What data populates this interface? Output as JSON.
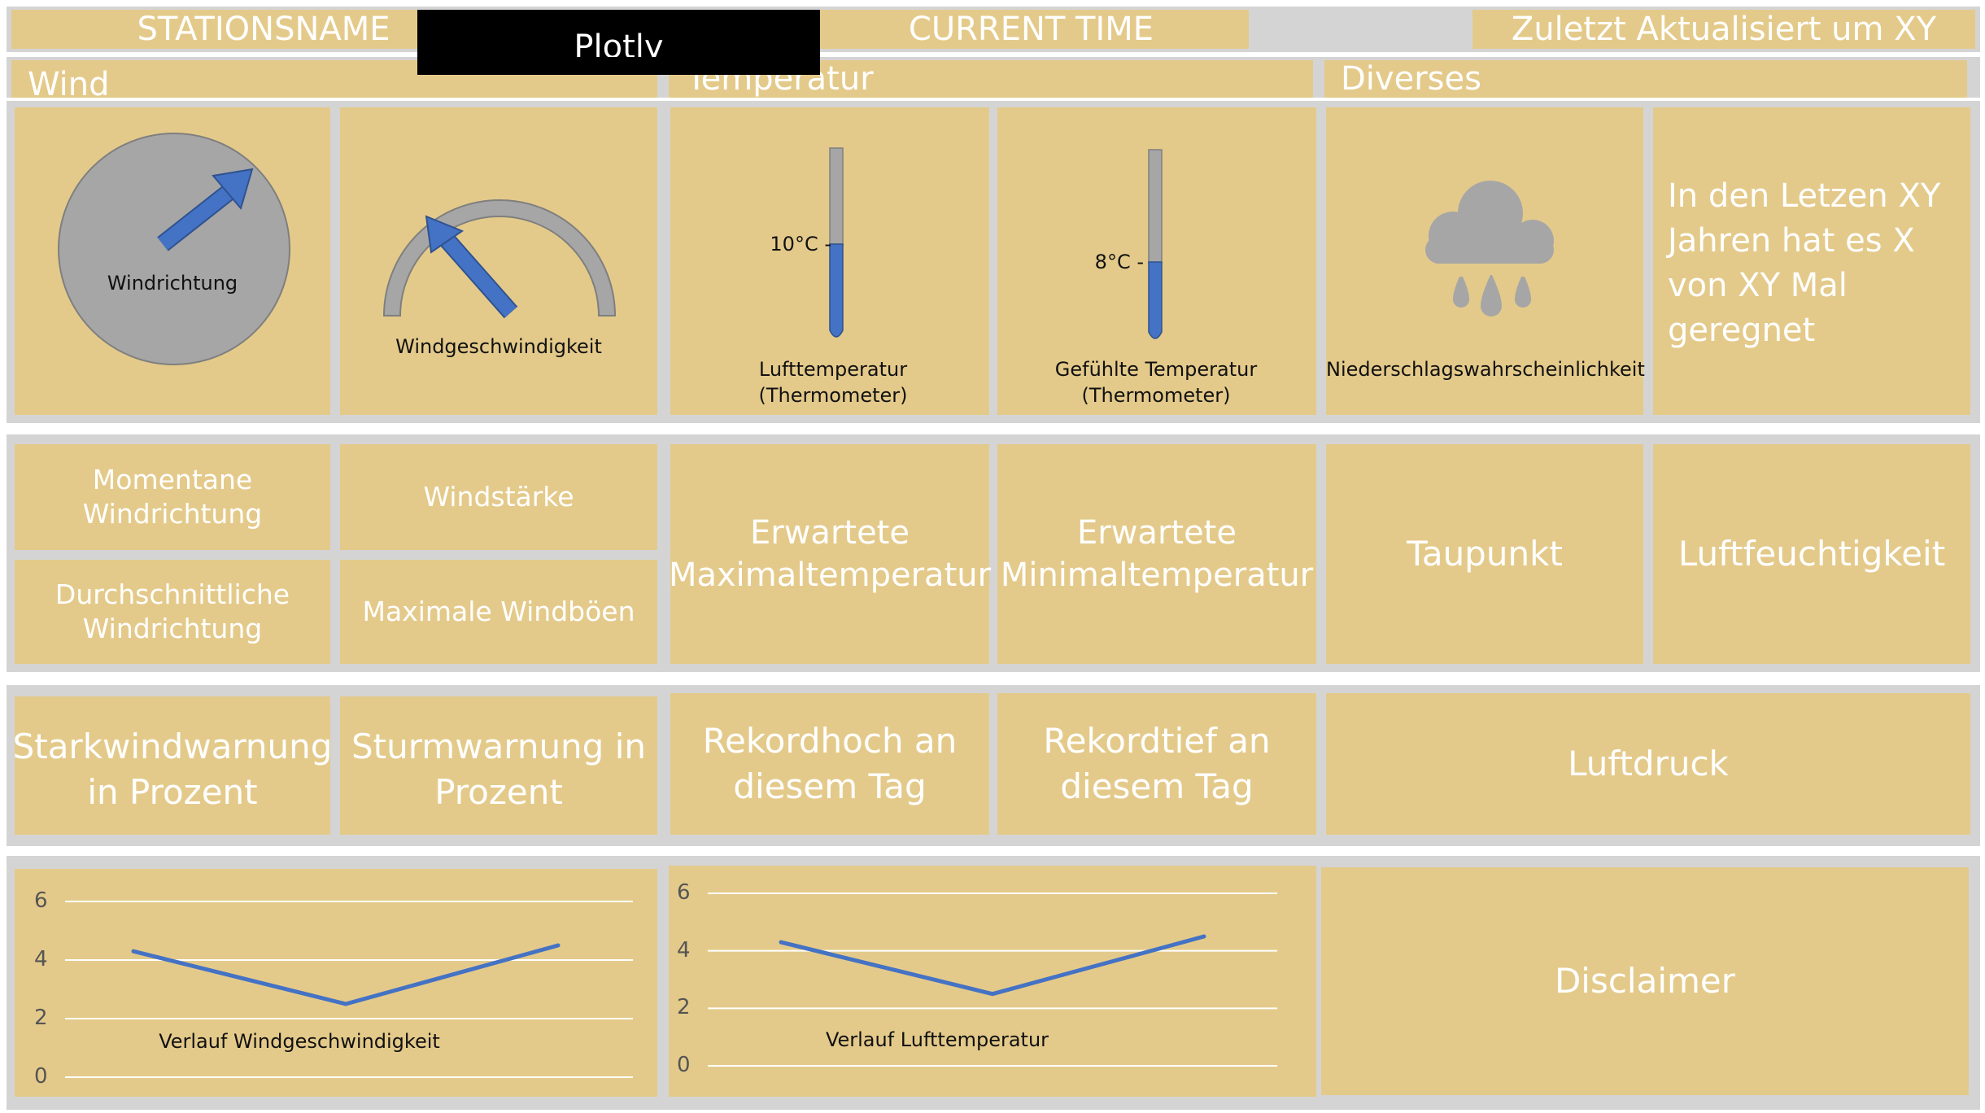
{
  "header": {
    "station_name": "STATIONSNAME",
    "plotly_badge": "Plotly",
    "current_time": "CURRENT TIME",
    "last_updated": "Zuletzt Aktualisiert um XY"
  },
  "sections": {
    "wind": "Wind",
    "temperatur": "Temperatur",
    "diverses": "Diverses"
  },
  "widgets": {
    "wind_direction": "Windrichtung",
    "wind_speed": "Windgeschwindigkeit",
    "air_temp_value": "10°C -",
    "air_temp_label_1": "Lufttemperatur",
    "air_temp_label_2": "(Thermometer)",
    "felt_temp_value": "8°C -",
    "felt_temp_label_1": "Gefühlte Temperatur",
    "felt_temp_label_2": "(Thermometer)",
    "precip_label": "Niederschlagswahrscheinlichkeit",
    "rain_history_1": "In den Letzen XY",
    "rain_history_2": "Jahren hat es X",
    "rain_history_3": "von XY Mal",
    "rain_history_4": "geregnet"
  },
  "row2": {
    "current_wind_dir_1": "Momentane",
    "current_wind_dir_2": "Windrichtung",
    "wind_force": "Windstärke",
    "avg_wind_dir_1": "Durchschnittliche",
    "avg_wind_dir_2": "Windrichtung",
    "max_gusts": "Maximale Windböen",
    "expected_max_1": "Erwartete",
    "expected_max_2": "Maximaltemperatur",
    "expected_min_1": "Erwartete",
    "expected_min_2": "Minimaltemperatur",
    "dew_point": "Taupunkt",
    "humidity": "Luftfeuchtigkeit"
  },
  "row3": {
    "strong_wind_1": "Starkwindwarnung",
    "strong_wind_2": "in Prozent",
    "storm_1": "Sturmwarnung in",
    "storm_2": "Prozent",
    "record_high_1": "Rekordhoch an",
    "record_high_2": "diesem Tag",
    "record_low_1": "Rekordtief an",
    "record_low_2": "diesem Tag",
    "pressure": "Luftdruck"
  },
  "disclaimer": "Disclaimer",
  "colors": {
    "tan": "#e4ca8a",
    "gray": "#d4d4d4",
    "accent_blue": "#4472c4",
    "widget_gray": "#a6a6a6"
  },
  "chart_data": [
    {
      "type": "line",
      "title": "Verlauf Windgeschwindigkeit",
      "x": [
        1,
        2,
        3
      ],
      "y": [
        4.3,
        2.5,
        4.5
      ],
      "ylim": [
        0,
        6
      ],
      "yticks": [
        "0",
        "2",
        "4",
        "6"
      ],
      "grid": true
    },
    {
      "type": "line",
      "title": "Verlauf Lufttemperatur",
      "x": [
        1,
        2,
        3
      ],
      "y": [
        4.3,
        2.5,
        4.5
      ],
      "ylim": [
        0,
        6
      ],
      "yticks": [
        "0",
        "2",
        "4",
        "6"
      ],
      "grid": true
    }
  ]
}
